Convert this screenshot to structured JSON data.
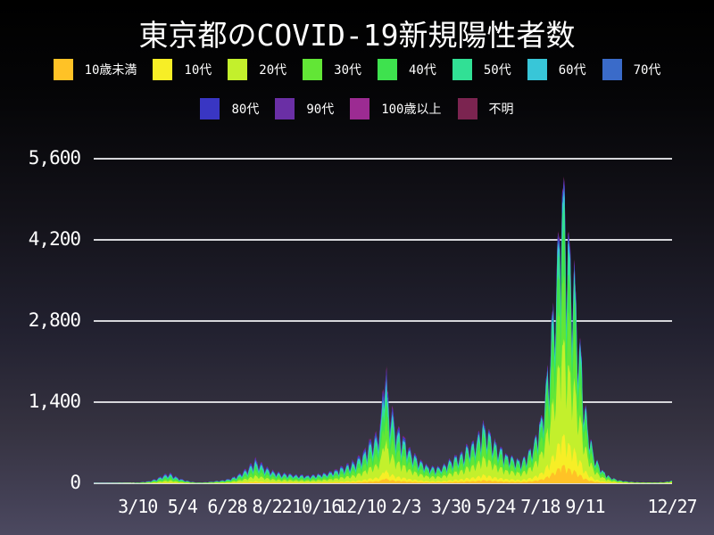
{
  "title": "東京都のCOVID-19新規陽性者数",
  "chart_data": {
    "type": "area",
    "stacked": true,
    "title": "東京都のCOVID-19新規陽性者数",
    "days": 712,
    "ylim": [
      0,
      6200
    ],
    "grid": true,
    "legend_position": "top",
    "gridline_color": "#d6d6da",
    "background_top": "#000000",
    "background_bottom": "#4c4960",
    "y_ticks": [
      {
        "label": "0",
        "value": 0
      },
      {
        "label": "1,400",
        "value": 1400
      },
      {
        "label": "2,800",
        "value": 2800
      },
      {
        "label": "4,200",
        "value": 4200
      },
      {
        "label": "5,600",
        "value": 5600
      }
    ],
    "x_ticks": [
      {
        "label": "3/10",
        "day": 54
      },
      {
        "label": "5/4",
        "day": 109
      },
      {
        "label": "6/28",
        "day": 164
      },
      {
        "label": "8/22",
        "day": 219
      },
      {
        "label": "10/16",
        "day": 274
      },
      {
        "label": "12/10",
        "day": 329
      },
      {
        "label": "2/3",
        "day": 384
      },
      {
        "label": "3/30",
        "day": 439
      },
      {
        "label": "5/24",
        "day": 494
      },
      {
        "label": "7/18",
        "day": 549
      },
      {
        "label": "9/11",
        "day": 604
      },
      {
        "label": "12/27",
        "day": 711
      }
    ],
    "series": [
      {
        "name": "10歳未満",
        "color": "#FFC226"
      },
      {
        "name": "10代",
        "color": "#F7EE26"
      },
      {
        "name": "20代",
        "color": "#C3F02C"
      },
      {
        "name": "30代",
        "color": "#62E636"
      },
      {
        "name": "40代",
        "color": "#3EE24E"
      },
      {
        "name": "50代",
        "color": "#31E095"
      },
      {
        "name": "60代",
        "color": "#38C6D8"
      },
      {
        "name": "70代",
        "color": "#3A6BC9"
      },
      {
        "name": "80代",
        "color": "#3936C3"
      },
      {
        "name": "90代",
        "color": "#6A2FA5"
      },
      {
        "name": "100歳以上",
        "color": "#9C2B92"
      },
      {
        "name": "不明",
        "color": "#7B2450"
      }
    ],
    "total_envelope_keypoints": [
      [
        0,
        2
      ],
      [
        20,
        2
      ],
      [
        35,
        4
      ],
      [
        45,
        8
      ],
      [
        54,
        16
      ],
      [
        62,
        28
      ],
      [
        70,
        48
      ],
      [
        78,
        95
      ],
      [
        85,
        155
      ],
      [
        92,
        205
      ],
      [
        97,
        170
      ],
      [
        103,
        110
      ],
      [
        110,
        70
      ],
      [
        118,
        35
      ],
      [
        126,
        16
      ],
      [
        134,
        18
      ],
      [
        142,
        28
      ],
      [
        150,
        42
      ],
      [
        158,
        58
      ],
      [
        166,
        85
      ],
      [
        174,
        135
      ],
      [
        182,
        210
      ],
      [
        190,
        310
      ],
      [
        198,
        465
      ],
      [
        204,
        400
      ],
      [
        210,
        330
      ],
      [
        218,
        255
      ],
      [
        226,
        210
      ],
      [
        234,
        190
      ],
      [
        244,
        175
      ],
      [
        254,
        165
      ],
      [
        264,
        155
      ],
      [
        274,
        175
      ],
      [
        284,
        200
      ],
      [
        294,
        250
      ],
      [
        304,
        310
      ],
      [
        314,
        380
      ],
      [
        324,
        470
      ],
      [
        330,
        560
      ],
      [
        336,
        740
      ],
      [
        342,
        860
      ],
      [
        348,
        960
      ],
      [
        352,
        1150
      ],
      [
        355,
        1650
      ],
      [
        357,
        2520
      ],
      [
        359,
        2150
      ],
      [
        362,
        1700
      ],
      [
        366,
        1400
      ],
      [
        371,
        1150
      ],
      [
        377,
        1000
      ],
      [
        384,
        800
      ],
      [
        391,
        620
      ],
      [
        398,
        480
      ],
      [
        406,
        380
      ],
      [
        414,
        320
      ],
      [
        422,
        310
      ],
      [
        430,
        360
      ],
      [
        438,
        440
      ],
      [
        446,
        530
      ],
      [
        454,
        620
      ],
      [
        462,
        740
      ],
      [
        470,
        880
      ],
      [
        478,
        1120
      ],
      [
        484,
        1000
      ],
      [
        490,
        850
      ],
      [
        497,
        720
      ],
      [
        504,
        620
      ],
      [
        511,
        530
      ],
      [
        518,
        450
      ],
      [
        525,
        430
      ],
      [
        532,
        520
      ],
      [
        538,
        680
      ],
      [
        544,
        900
      ],
      [
        550,
        1250
      ],
      [
        556,
        1850
      ],
      [
        562,
        2800
      ],
      [
        567,
        3800
      ],
      [
        571,
        4650
      ],
      [
        575,
        5900
      ],
      [
        578,
        5500
      ],
      [
        581,
        5100
      ],
      [
        585,
        4650
      ],
      [
        589,
        4150
      ],
      [
        593,
        3500
      ],
      [
        597,
        2800
      ],
      [
        601,
        2100
      ],
      [
        604,
        1500
      ],
      [
        608,
        1050
      ],
      [
        612,
        750
      ],
      [
        616,
        520
      ],
      [
        620,
        380
      ],
      [
        625,
        260
      ],
      [
        630,
        170
      ],
      [
        636,
        110
      ],
      [
        642,
        75
      ],
      [
        650,
        45
      ],
      [
        658,
        28
      ],
      [
        668,
        20
      ],
      [
        680,
        16
      ],
      [
        692,
        16
      ],
      [
        702,
        22
      ],
      [
        711,
        48
      ]
    ],
    "share_keyframes": [
      {
        "day": 0,
        "shares": [
          0.02,
          0.03,
          0.18,
          0.17,
          0.16,
          0.13,
          0.09,
          0.09,
          0.06,
          0.025,
          0.003,
          0.042
        ]
      },
      {
        "day": 330,
        "shares": [
          0.04,
          0.07,
          0.25,
          0.19,
          0.15,
          0.11,
          0.06,
          0.05,
          0.04,
          0.02,
          0.003,
          0.017
        ]
      },
      {
        "day": 560,
        "shares": [
          0.06,
          0.1,
          0.31,
          0.21,
          0.15,
          0.09,
          0.035,
          0.02,
          0.013,
          0.006,
          0.001,
          0.005
        ]
      },
      {
        "day": 711,
        "shares": [
          0.06,
          0.1,
          0.31,
          0.21,
          0.15,
          0.09,
          0.035,
          0.02,
          0.013,
          0.006,
          0.001,
          0.005
        ]
      }
    ],
    "weekly_pattern": [
      0.6,
      0.74,
      0.92,
      1.0,
      0.97,
      0.95,
      0.8
    ],
    "noise": {
      "seed": 7,
      "base": 0.88,
      "range": 0.14
    }
  }
}
